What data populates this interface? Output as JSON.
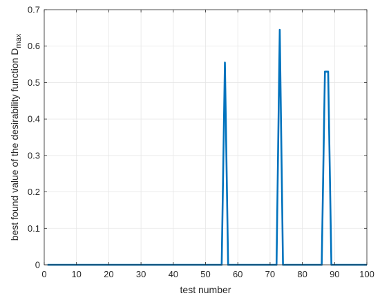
{
  "chart_data": {
    "type": "line",
    "xlabel": "test number",
    "ylabel": "best found value of the desirability function D",
    "ylabel_subscript": "max",
    "xlim": [
      0,
      100
    ],
    "ylim": [
      0,
      0.7
    ],
    "xticks": [
      0,
      10,
      20,
      30,
      40,
      50,
      60,
      70,
      80,
      90,
      100
    ],
    "yticks": [
      0,
      0.1,
      0.2,
      0.3,
      0.4,
      0.5,
      0.6,
      0.7
    ],
    "grid": true,
    "line_color": "#0072BD",
    "series": [
      {
        "x": [
          1,
          55,
          56,
          57,
          72,
          73,
          74,
          86,
          87,
          88,
          89,
          100
        ],
        "y": [
          0,
          0,
          0.555,
          0,
          0,
          0.645,
          0,
          0,
          0.53,
          0.53,
          0,
          0
        ]
      }
    ]
  }
}
